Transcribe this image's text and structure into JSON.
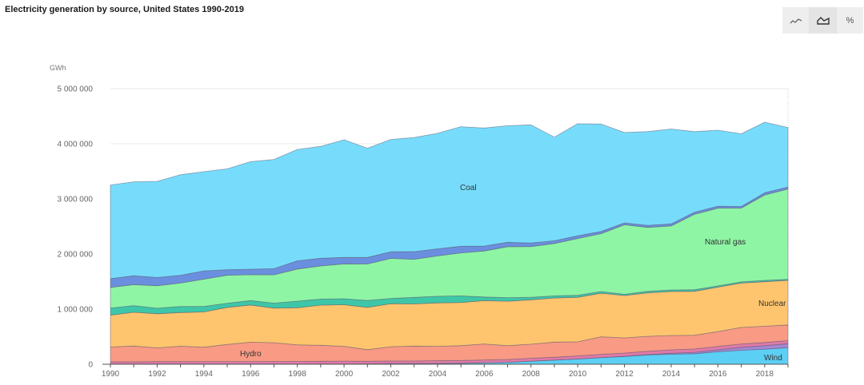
{
  "header": {
    "title": "Electricity generation by source, United States 1990-2019"
  },
  "toolbar": {
    "buttons": [
      {
        "icon": "line-chart-icon",
        "active": false
      },
      {
        "icon": "area-chart-icon",
        "active": true
      },
      {
        "icon": "percent-icon",
        "label": "%",
        "active": false
      }
    ]
  },
  "chart_data": {
    "type": "area",
    "stacked": true,
    "title": "Electricity generation by source, United States 1990-2019",
    "yunit": "GWh",
    "ylim": [
      0,
      5000000
    ],
    "yticks": [
      0,
      1000000,
      2000000,
      3000000,
      4000000,
      5000000
    ],
    "ytick_labels": [
      "0",
      "1 000 000",
      "2 000 000",
      "3 000 000",
      "4 000 000",
      "5 000 000"
    ],
    "x": [
      1990,
      1991,
      1992,
      1993,
      1994,
      1995,
      1996,
      1997,
      1998,
      1999,
      2000,
      2001,
      2002,
      2003,
      2004,
      2005,
      2006,
      2007,
      2008,
      2009,
      2010,
      2011,
      2012,
      2013,
      2014,
      2015,
      2016,
      2017,
      2018,
      2019
    ],
    "xticks": [
      1990,
      1992,
      1994,
      1996,
      1998,
      2000,
      2002,
      2004,
      2006,
      2008,
      2010,
      2012,
      2014,
      2016,
      2018
    ],
    "grid": true,
    "colors": {
      "wind": "#5ccff5",
      "solar": "#a686d4",
      "bio": "#e07aa8",
      "hydro": "#f99a84",
      "nuclear": "#fec56e",
      "oil": "#3dc7a8",
      "natural_gas": "#8ef5a5",
      "other": "#6b8fdf",
      "coal": "#77dcfc"
    },
    "series": [
      {
        "name": "Wind",
        "key": "wind",
        "values": [
          3000,
          3000,
          3000,
          3000,
          3500,
          3200,
          3400,
          3300,
          3000,
          4500,
          5600,
          6700,
          10400,
          11200,
          14100,
          17800,
          26600,
          34400,
          55300,
          73900,
          94600,
          120200,
          140800,
          167800,
          181700,
          190700,
          226900,
          254300,
          272700,
          300100
        ]
      },
      {
        "key": "solar",
        "values": [
          400,
          500,
          400,
          500,
          500,
          500,
          500,
          500,
          500,
          500,
          500,
          500,
          500,
          500,
          600,
          600,
          500,
          600,
          900,
          900,
          1200,
          1800,
          4300,
          9000,
          17700,
          24900,
          36100,
          53300,
          63800,
          72200
        ]
      },
      {
        "key": "bio",
        "values": [
          40000,
          42000,
          44000,
          44000,
          45000,
          45000,
          46000,
          47000,
          48000,
          49000,
          50000,
          46000,
          48000,
          48000,
          50000,
          50000,
          51000,
          52000,
          53000,
          52000,
          56000,
          57000,
          58000,
          60000,
          62000,
          61000,
          60000,
          60000,
          58000,
          56000
        ]
      },
      {
        "name": "Hydro",
        "key": "hydro",
        "values": [
          270000,
          285000,
          250000,
          280000,
          260000,
          310000,
          350000,
          340000,
          300000,
          290000,
          270000,
          210000,
          260000,
          270000,
          260000,
          270000,
          290000,
          250000,
          255000,
          275000,
          255000,
          320000,
          275000,
          270000,
          260000,
          250000,
          270000,
          300000,
          295000,
          285000
        ]
      },
      {
        "name": "Nuclear",
        "key": "nuclear",
        "values": [
          577000,
          613000,
          619000,
          610000,
          640000,
          673000,
          675000,
          628000,
          673000,
          728000,
          753000,
          769000,
          780000,
          764000,
          789000,
          782000,
          787000,
          806000,
          806000,
          799000,
          807000,
          790000,
          769000,
          789000,
          797000,
          797000,
          805000,
          805000,
          807000,
          809000
        ]
      },
      {
        "key": "oil",
        "values": [
          130000,
          120000,
          100000,
          110000,
          100000,
          75000,
          80000,
          90000,
          120000,
          110000,
          110000,
          125000,
          95000,
          120000,
          120000,
          120000,
          65000,
          65000,
          45000,
          40000,
          38000,
          30000,
          23000,
          27000,
          30000,
          28000,
          24000,
          21000,
          25000,
          18000
        ]
      },
      {
        "name": "Natural gas",
        "key": "natural_gas",
        "values": [
          372000,
          382000,
          408000,
          425000,
          495000,
          508000,
          470000,
          515000,
          583000,
          601000,
          633000,
          661000,
          727000,
          690000,
          731000,
          780000,
          835000,
          925000,
          920000,
          950000,
          1030000,
          1050000,
          1260000,
          1160000,
          1160000,
          1370000,
          1410000,
          1340000,
          1550000,
          1640000
        ]
      },
      {
        "key": "other",
        "values": [
          160000,
          160000,
          150000,
          140000,
          150000,
          100000,
          100000,
          110000,
          150000,
          140000,
          115000,
          120000,
          120000,
          140000,
          130000,
          120000,
          90000,
          80000,
          65000,
          50000,
          50000,
          40000,
          35000,
          38000,
          40000,
          38000,
          35000,
          28000,
          40000,
          35000
        ]
      },
      {
        "name": "Coal",
        "key": "coal",
        "values": [
          1700000,
          1705000,
          1745000,
          1825000,
          1800000,
          1830000,
          1950000,
          1980000,
          2020000,
          2030000,
          2135000,
          1980000,
          2037000,
          2070000,
          2095000,
          2170000,
          2140000,
          2115000,
          2143000,
          1880000,
          2032000,
          1949000,
          1639000,
          1701000,
          1720000,
          1460000,
          1380000,
          1320000,
          1280000,
          1080000
        ]
      }
    ]
  }
}
